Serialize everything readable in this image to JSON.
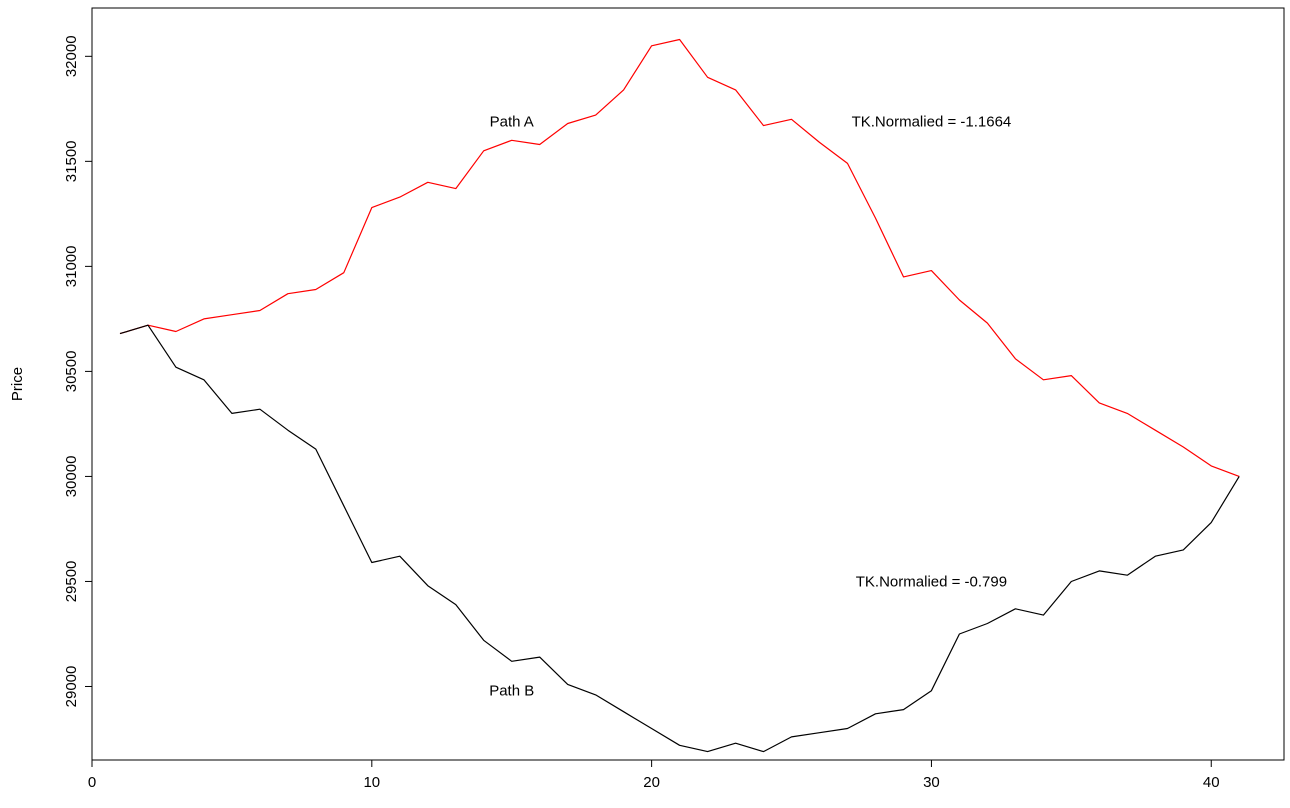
{
  "chart_data": {
    "type": "line",
    "title": "",
    "xlabel": "",
    "ylabel": "Price",
    "xlim": [
      0,
      42.6
    ],
    "ylim": [
      28650,
      32230
    ],
    "x_ticks": [
      0,
      10,
      20,
      30,
      40
    ],
    "x_tick_labels": [
      "0",
      "10",
      "20",
      "30",
      "40"
    ],
    "y_ticks": [
      29000,
      29500,
      30000,
      30500,
      31000,
      31500,
      32000
    ],
    "y_tick_labels": [
      "29000",
      "29500",
      "30000",
      "30500",
      "31000",
      "31500",
      "32000"
    ],
    "grid": false,
    "x": [
      1,
      2,
      3,
      4,
      5,
      6,
      7,
      8,
      9,
      10,
      11,
      12,
      13,
      14,
      15,
      16,
      17,
      18,
      19,
      20,
      21,
      22,
      23,
      24,
      25,
      26,
      27,
      28,
      29,
      30,
      31,
      32,
      33,
      34,
      35,
      36,
      37,
      38,
      39,
      40,
      41
    ],
    "series": [
      {
        "name": "Path A",
        "color": "#ff0000",
        "values": [
          30680,
          30720,
          30690,
          30750,
          30770,
          30790,
          30870,
          30890,
          30970,
          31280,
          31330,
          31400,
          31370,
          31550,
          31600,
          31580,
          31680,
          31720,
          31840,
          32050,
          32080,
          31900,
          31840,
          31670,
          31700,
          31590,
          31490,
          31230,
          30950,
          30980,
          30840,
          30730,
          30560,
          30460,
          30480,
          30350,
          30300,
          30220,
          30140,
          30050,
          30000
        ]
      },
      {
        "name": "Path B",
        "color": "#000000",
        "values": [
          30680,
          30720,
          30520,
          30460,
          30300,
          30320,
          30220,
          30130,
          29860,
          29590,
          29620,
          29480,
          29390,
          29220,
          29120,
          29140,
          29010,
          28960,
          28880,
          28800,
          28720,
          28690,
          28730,
          28690,
          28760,
          28780,
          28800,
          28870,
          28890,
          28980,
          29250,
          29300,
          29370,
          29340,
          29500,
          29550,
          29530,
          29620,
          29650,
          29780,
          30000
        ]
      }
    ],
    "annotations": [
      {
        "text": "Path A",
        "x": 15,
        "y": 31690
      },
      {
        "text": "TK.Normalied = -1.1664",
        "x": 30,
        "y": 31690
      },
      {
        "text": "TK.Normalied = -0.799",
        "x": 30,
        "y": 29500
      },
      {
        "text": "Path B",
        "x": 15,
        "y": 28980
      }
    ]
  }
}
